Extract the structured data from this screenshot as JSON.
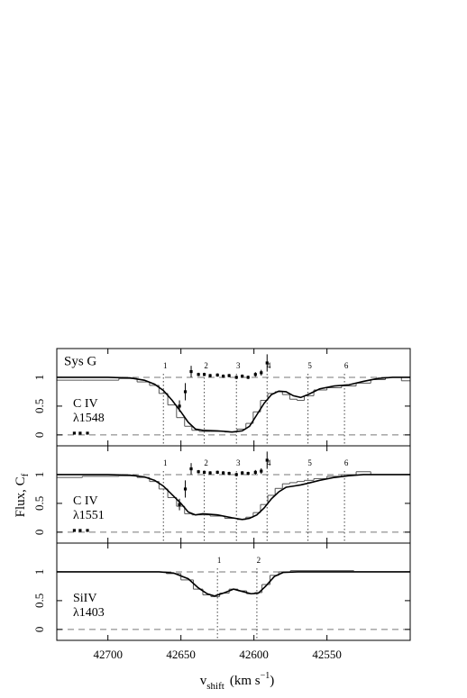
{
  "chart_data": [
    {
      "type": "line",
      "title": "Sys G",
      "labels": [
        "C IV",
        "λ1548"
      ],
      "xlim": [
        42735,
        42493
      ],
      "ylim": [
        -0.19,
        1.5
      ],
      "yticks": [
        0,
        0.5,
        1
      ],
      "hlines": [
        0,
        1
      ],
      "components": {
        "x": [
          42662,
          42634,
          42612,
          42591,
          42563,
          42538
        ],
        "labels": [
          1,
          2,
          3,
          4,
          5,
          6
        ]
      },
      "x": [
        42735,
        42700,
        42685,
        42675,
        42668,
        42662,
        42656,
        42650,
        42645,
        42640,
        42635,
        42625,
        42615,
        42608,
        42603,
        42598,
        42593,
        42588,
        42583,
        42578,
        42573,
        42568,
        42563,
        42555,
        42545,
        42535,
        42525,
        42515,
        42505,
        42493
      ],
      "series": [
        {
          "style": "step",
          "color": "#555555",
          "values": [
            0.95,
            0.95,
            0.98,
            0.92,
            0.86,
            0.72,
            0.52,
            0.3,
            0.15,
            0.08,
            0.06,
            0.06,
            0.05,
            0.1,
            0.2,
            0.4,
            0.6,
            0.72,
            0.75,
            0.7,
            0.62,
            0.6,
            0.68,
            0.78,
            0.82,
            0.85,
            0.9,
            0.96,
            1,
            0.94
          ]
        },
        {
          "style": "line",
          "color": "#000000",
          "values": [
            1,
            1,
            0.99,
            0.95,
            0.88,
            0.77,
            0.6,
            0.4,
            0.22,
            0.1,
            0.08,
            0.07,
            0.05,
            0.07,
            0.15,
            0.35,
            0.55,
            0.7,
            0.76,
            0.75,
            0.68,
            0.65,
            0.7,
            0.8,
            0.85,
            0.87,
            0.93,
            0.98,
            1,
            1
          ]
        }
      ],
      "points": {
        "x": [
          42723,
          42719,
          42714,
          42651,
          42647,
          42643,
          42638,
          42634,
          42630,
          42625,
          42621,
          42617,
          42612,
          42608,
          42604,
          42599,
          42595,
          42591
        ],
        "values": [
          0.03,
          0.03,
          0.03,
          0.5,
          0.75,
          1.1,
          1.05,
          1.05,
          1.03,
          1.04,
          1.02,
          1.03,
          1.0,
          1.02,
          1.0,
          1.05,
          1.08,
          1.25
        ],
        "errors": [
          0.02,
          0.02,
          0.02,
          0.1,
          0.15,
          0.1,
          0.03,
          0.03,
          0.03,
          0.03,
          0.03,
          0.03,
          0.03,
          0.03,
          0.03,
          0.04,
          0.05,
          0.15
        ]
      }
    },
    {
      "type": "line",
      "labels": [
        "C IV",
        "λ1551"
      ],
      "ylabel": [
        "Flux, C",
        "f"
      ],
      "xlim": [
        42735,
        42493
      ],
      "ylim": [
        -0.19,
        1.5
      ],
      "yticks": [
        0,
        0.5,
        1
      ],
      "hlines": [
        0,
        1
      ],
      "components": {
        "x": [
          42662,
          42634,
          42612,
          42591,
          42563,
          42538
        ],
        "labels": [
          1,
          2,
          3,
          4,
          5,
          6
        ]
      },
      "x": [
        42735,
        42700,
        42685,
        42675,
        42668,
        42662,
        42656,
        42650,
        42645,
        42640,
        42635,
        42625,
        42615,
        42608,
        42603,
        42598,
        42593,
        42588,
        42583,
        42578,
        42573,
        42568,
        42563,
        42555,
        42545,
        42535,
        42525,
        42515,
        42505,
        42493
      ],
      "series": [
        {
          "style": "step",
          "color": "#555555",
          "values": [
            0.95,
            0.97,
            0.98,
            0.95,
            0.88,
            0.75,
            0.6,
            0.45,
            0.32,
            0.3,
            0.3,
            0.28,
            0.24,
            0.22,
            0.26,
            0.34,
            0.48,
            0.64,
            0.76,
            0.84,
            0.86,
            0.88,
            0.9,
            0.93,
            0.97,
            1.0,
            1.05,
            1,
            1,
            1
          ]
        },
        {
          "style": "line",
          "color": "#000000",
          "values": [
            1,
            1,
            0.99,
            0.96,
            0.9,
            0.8,
            0.65,
            0.5,
            0.35,
            0.3,
            0.32,
            0.3,
            0.25,
            0.22,
            0.24,
            0.3,
            0.42,
            0.58,
            0.7,
            0.78,
            0.8,
            0.82,
            0.85,
            0.9,
            0.95,
            0.98,
            1,
            1,
            1,
            1
          ]
        }
      ],
      "points": {
        "x": [
          42723,
          42719,
          42714,
          42651,
          42647,
          42643,
          42638,
          42634,
          42630,
          42625,
          42621,
          42617,
          42612,
          42608,
          42604,
          42599,
          42595,
          42591
        ],
        "values": [
          0.03,
          0.03,
          0.03,
          0.48,
          0.75,
          1.1,
          1.05,
          1.04,
          1.03,
          1.04,
          1.03,
          1.02,
          1.0,
          1.03,
          1.02,
          1.04,
          1.06,
          1.25
        ],
        "errors": [
          0.02,
          0.02,
          0.02,
          0.1,
          0.15,
          0.1,
          0.03,
          0.03,
          0.03,
          0.03,
          0.03,
          0.03,
          0.03,
          0.03,
          0.03,
          0.04,
          0.05,
          0.15
        ]
      }
    },
    {
      "type": "line",
      "labels": [
        "SiIV",
        "λ1403"
      ],
      "xlabel": [
        "v",
        "shift",
        "(km s",
        "−1",
        ")"
      ],
      "xlim": [
        42735,
        42493
      ],
      "ylim": [
        -0.19,
        1.5
      ],
      "yticks": [
        0,
        0.5,
        1
      ],
      "xticks": [
        42700,
        42650,
        42600,
        42550
      ],
      "hlines": [
        0,
        1
      ],
      "components": {
        "x": [
          42625,
          42598
        ],
        "labels": [
          1,
          2
        ]
      },
      "x": [
        42735,
        42665,
        42655,
        42645,
        42638,
        42632,
        42627,
        42620,
        42614,
        42608,
        42602,
        42597,
        42592,
        42586,
        42580,
        42570,
        42493
      ],
      "series": [
        {
          "style": "step",
          "color": "#555555",
          "values": [
            null,
            1.0,
            0.97,
            0.86,
            0.7,
            0.6,
            0.57,
            0.63,
            0.7,
            0.67,
            0.62,
            0.64,
            0.78,
            0.94,
            1.0,
            1.02,
            null
          ]
        },
        {
          "style": "line",
          "color": "#000000",
          "values": [
            1,
            1,
            0.98,
            0.88,
            0.72,
            0.62,
            0.58,
            0.64,
            0.7,
            0.66,
            0.62,
            0.63,
            0.75,
            0.92,
            0.99,
            1,
            1
          ]
        }
      ]
    }
  ]
}
